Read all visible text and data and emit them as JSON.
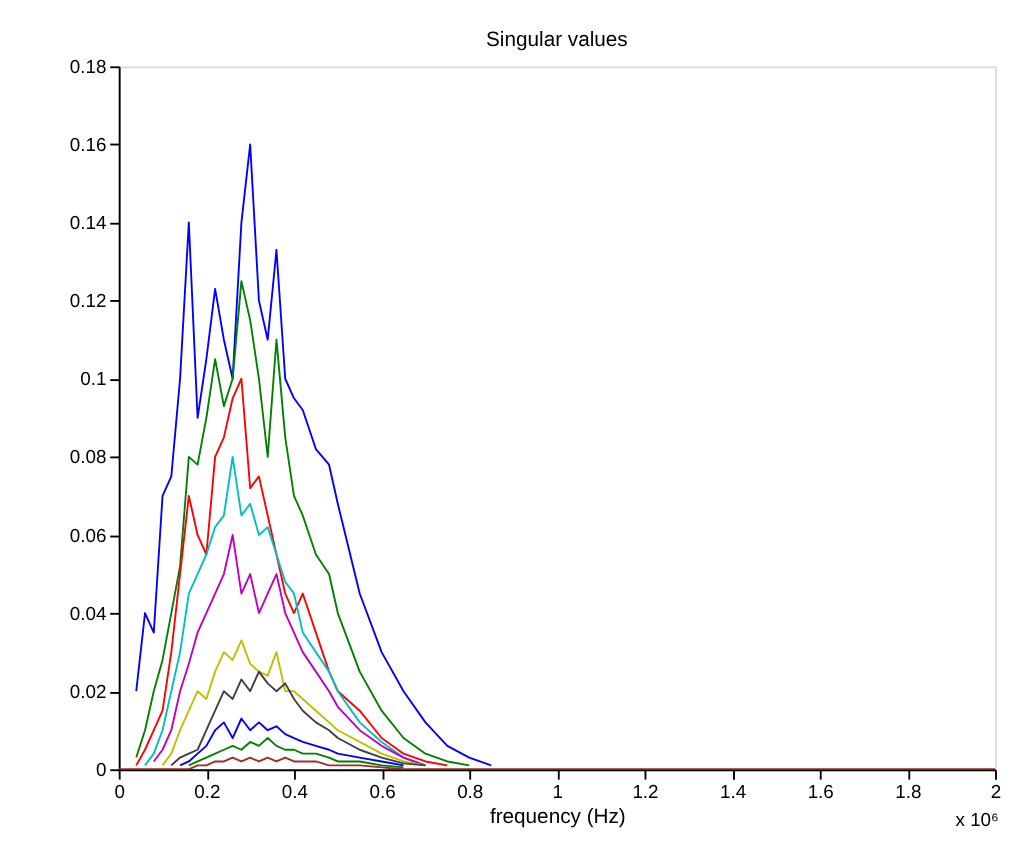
{
  "chart_data": {
    "type": "line",
    "title": "Singular values",
    "xlabel": "frequency (Hz)",
    "annotations": [
      "x 10⁶"
    ],
    "xlim": [
      0,
      2
    ],
    "xticks": [
      0,
      0.2,
      0.4,
      0.6,
      0.8,
      1,
      1.2,
      1.4,
      1.6,
      1.8,
      2
    ],
    "ylim": [
      0,
      0.18
    ],
    "yticks": [
      0,
      0.02,
      0.04,
      0.06,
      0.08,
      0.1,
      0.12,
      0.14,
      0.16,
      0.18
    ],
    "grid": false,
    "legend": false,
    "marker": "none",
    "line_style": "solid",
    "x": [
      0,
      0.04,
      0.06,
      0.08,
      0.1,
      0.12,
      0.14,
      0.16,
      0.18,
      0.2,
      0.22,
      0.24,
      0.26,
      0.28,
      0.3,
      0.32,
      0.34,
      0.36,
      0.38,
      0.4,
      0.42,
      0.45,
      0.48,
      0.5,
      0.55,
      0.6,
      0.65,
      0.7,
      0.75,
      0.8,
      0.85,
      0.9,
      1.0,
      2.0
    ],
    "series": [
      {
        "color": "#0000ff",
        "values": [
          null,
          0.02,
          0.04,
          0.035,
          0.07,
          0.075,
          0.1,
          0.14,
          0.09,
          0.105,
          0.123,
          0.11,
          0.1,
          0.14,
          0.16,
          0.12,
          0.11,
          0.133,
          0.1,
          0.095,
          0.092,
          0.082,
          0.078,
          0.068,
          0.045,
          0.03,
          0.02,
          0.012,
          0.006,
          0.003,
          0.001,
          null,
          null,
          null
        ]
      },
      {
        "color": "#008000",
        "values": [
          null,
          0.003,
          0.01,
          0.02,
          0.028,
          0.04,
          0.052,
          0.08,
          0.078,
          0.09,
          0.105,
          0.093,
          0.1,
          0.125,
          0.115,
          0.1,
          0.08,
          0.11,
          0.085,
          0.07,
          0.065,
          0.055,
          0.05,
          0.04,
          0.025,
          0.015,
          0.008,
          0.004,
          0.002,
          0.001,
          null,
          null,
          null,
          null
        ]
      },
      {
        "color": "#ff0000",
        "values": [
          null,
          0.001,
          0.005,
          0.01,
          0.015,
          0.03,
          0.05,
          0.07,
          0.06,
          0.055,
          0.08,
          0.085,
          0.095,
          0.1,
          0.072,
          0.075,
          0.065,
          0.055,
          0.045,
          0.04,
          0.045,
          0.035,
          0.025,
          0.02,
          0.015,
          0.008,
          0.004,
          0.002,
          0.001,
          null,
          null,
          null,
          null,
          null
        ]
      },
      {
        "color": "#00bfbf",
        "values": [
          null,
          null,
          0.001,
          0.004,
          0.01,
          0.02,
          0.03,
          0.045,
          0.05,
          0.055,
          0.062,
          0.065,
          0.08,
          0.065,
          0.068,
          0.06,
          0.062,
          0.055,
          0.048,
          0.045,
          0.035,
          0.03,
          0.025,
          0.02,
          0.012,
          0.007,
          0.003,
          0.001,
          null,
          null,
          null,
          null,
          null,
          null
        ]
      },
      {
        "color": "#bf00bf",
        "values": [
          null,
          null,
          null,
          0.002,
          0.005,
          0.01,
          0.02,
          0.027,
          0.035,
          0.04,
          0.045,
          0.05,
          0.06,
          0.045,
          0.05,
          0.04,
          0.045,
          0.05,
          0.04,
          0.035,
          0.03,
          0.025,
          0.02,
          0.016,
          0.01,
          0.006,
          0.003,
          0.001,
          null,
          null,
          null,
          null,
          null,
          null
        ]
      },
      {
        "color": "#bfbf00",
        "values": [
          null,
          null,
          null,
          null,
          0.001,
          0.004,
          0.01,
          0.015,
          0.02,
          0.018,
          0.025,
          0.03,
          0.028,
          0.033,
          0.027,
          0.025,
          0.024,
          0.03,
          0.02,
          0.02,
          0.018,
          0.015,
          0.012,
          0.01,
          0.007,
          0.004,
          0.002,
          0.001,
          null,
          null,
          null,
          null,
          null,
          null
        ]
      },
      {
        "color": "#404040",
        "values": [
          null,
          null,
          null,
          null,
          null,
          0.001,
          0.003,
          0.004,
          0.005,
          0.01,
          0.015,
          0.02,
          0.018,
          0.023,
          0.02,
          0.025,
          0.022,
          0.02,
          0.022,
          0.018,
          0.015,
          0.012,
          0.01,
          0.008,
          0.005,
          0.003,
          0.0015,
          0.001,
          null,
          null,
          null,
          null,
          null,
          null
        ]
      },
      {
        "color": "#0000ff",
        "values": [
          null,
          null,
          null,
          null,
          null,
          null,
          0.001,
          0.002,
          0.004,
          0.006,
          0.01,
          0.012,
          0.008,
          0.013,
          0.01,
          0.012,
          0.01,
          0.011,
          0.009,
          0.008,
          0.007,
          0.006,
          0.005,
          0.004,
          0.003,
          0.002,
          0.001,
          null,
          null,
          null,
          null,
          null,
          null,
          null
        ]
      },
      {
        "color": "#008000",
        "values": [
          null,
          null,
          null,
          null,
          null,
          null,
          null,
          0.001,
          0.002,
          0.003,
          0.004,
          0.005,
          0.006,
          0.005,
          0.007,
          0.006,
          0.008,
          0.006,
          0.005,
          0.005,
          0.004,
          0.004,
          0.003,
          0.002,
          0.002,
          0.001,
          0.0005,
          null,
          null,
          null,
          null,
          null,
          null,
          null
        ]
      },
      {
        "color": "#a52a2a",
        "values": [
          0,
          0,
          0,
          0,
          0,
          0,
          0,
          0,
          0.001,
          0.001,
          0.002,
          0.002,
          0.003,
          0.002,
          0.003,
          0.002,
          0.003,
          0.002,
          0.003,
          0.002,
          0.002,
          0.002,
          0.001,
          0.001,
          0.001,
          0.0005,
          0,
          0,
          0,
          0,
          0,
          0,
          0,
          0
        ]
      }
    ]
  }
}
